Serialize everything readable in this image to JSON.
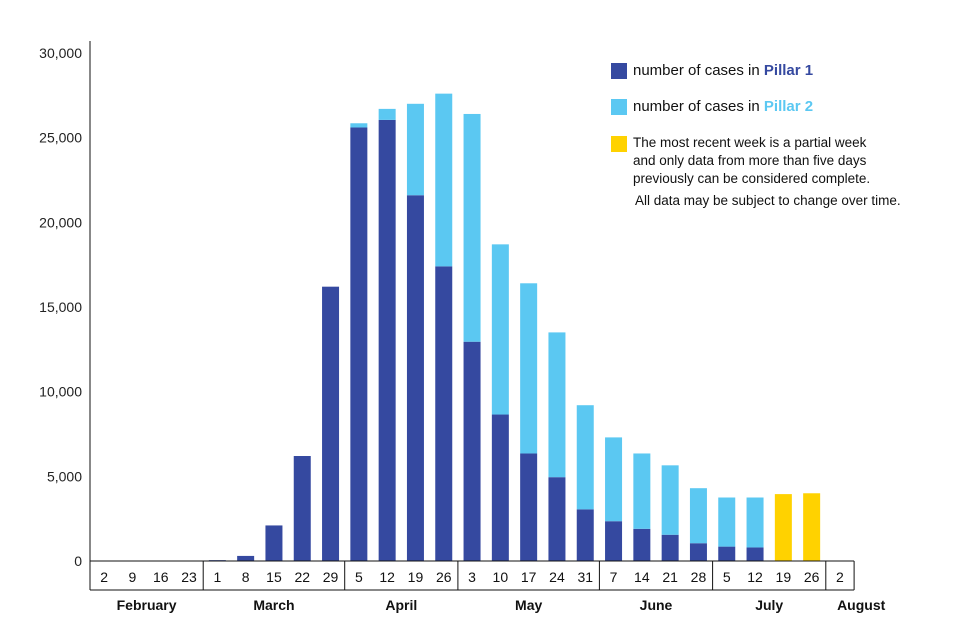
{
  "chart_data": {
    "type": "bar",
    "stacked": true,
    "title": "",
    "xlabel": "",
    "ylabel": "",
    "ylim": [
      0,
      30000
    ],
    "y_ticks": [
      0,
      5000,
      10000,
      15000,
      20000,
      25000,
      30000
    ],
    "y_tick_labels": [
      "0",
      "5,000",
      "10,000",
      "15,000",
      "20,000",
      "25,000",
      "30,000"
    ],
    "categories": [
      "2",
      "9",
      "16",
      "23",
      "1",
      "8",
      "15",
      "22",
      "29",
      "5",
      "12",
      "19",
      "26",
      "3",
      "10",
      "17",
      "24",
      "31",
      "7",
      "14",
      "21",
      "28",
      "5",
      "12",
      "19",
      "26",
      "2"
    ],
    "months": [
      {
        "label": "February",
        "start": 0,
        "end": 3
      },
      {
        "label": "March",
        "start": 4,
        "end": 8
      },
      {
        "label": "April",
        "start": 9,
        "end": 12
      },
      {
        "label": "May",
        "start": 13,
        "end": 17
      },
      {
        "label": "June",
        "start": 18,
        "end": 21
      },
      {
        "label": "July",
        "start": 22,
        "end": 25
      },
      {
        "label": "August",
        "start": 26,
        "end": 26
      }
    ],
    "series": [
      {
        "name": "Pillar 1",
        "color": "#3549a0",
        "values": [
          0,
          0,
          0,
          0,
          50,
          300,
          2100,
          6200,
          16200,
          25600,
          26050,
          21600,
          17400,
          12950,
          8650,
          6350,
          4950,
          3050,
          2350,
          1900,
          1550,
          1050,
          850,
          800,
          0,
          0,
          0
        ]
      },
      {
        "name": "Pillar 2",
        "color": "#5bc8f2",
        "values": [
          0,
          0,
          0,
          0,
          0,
          0,
          0,
          0,
          0,
          250,
          650,
          5400,
          10200,
          13450,
          10050,
          10050,
          8550,
          6150,
          4950,
          4450,
          4100,
          3250,
          2900,
          2950,
          0,
          0,
          0
        ]
      },
      {
        "name": "Partial week",
        "color": "#ffd200",
        "values": [
          0,
          0,
          0,
          0,
          0,
          0,
          0,
          0,
          0,
          0,
          0,
          0,
          0,
          0,
          0,
          0,
          0,
          0,
          0,
          0,
          0,
          0,
          0,
          0,
          3950,
          4000,
          0
        ]
      }
    ]
  },
  "legend": {
    "pillar1_prefix": "number of cases in ",
    "pillar1_strong": "Pillar 1",
    "pillar2_prefix": "number of cases in ",
    "pillar2_strong": "Pillar 2",
    "note_line1": "The most recent week is a partial week",
    "note_line2": "and only data from more than five days",
    "note_line3": "previously can be considered complete.",
    "note_line4": "All data may be subject to change over time.",
    "color_pillar1": "#3549a0",
    "color_pillar2": "#5bc8f2",
    "color_partial": "#ffd200"
  }
}
